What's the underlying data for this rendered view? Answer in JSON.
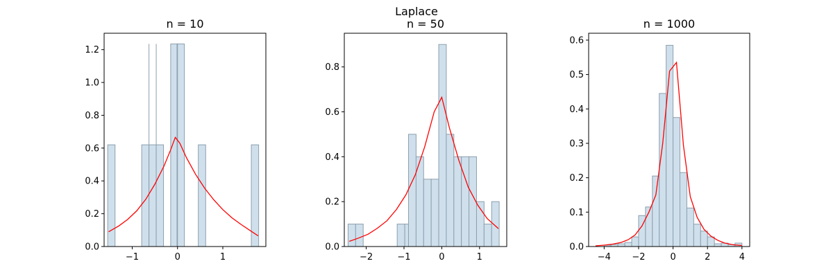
{
  "suptitle": "Laplace",
  "colors": {
    "bar_fill": "#cfe0ec",
    "bar_stroke": "#8d9fad",
    "curve": "#ff0000",
    "axis": "#000000"
  },
  "chart_data": [
    {
      "type": "bar",
      "title": "n = 10",
      "xlabel": "",
      "ylabel": "",
      "xlim": [
        -1.62,
        1.95
      ],
      "ylim": [
        0,
        1.3
      ],
      "xticks": [
        -1,
        0,
        1
      ],
      "xtick_labels": [
        "−1",
        "0",
        "1"
      ],
      "yticks": [
        0.0,
        0.2,
        0.4,
        0.6,
        0.8,
        1.0,
        1.2
      ],
      "ytick_labels": [
        "0.0",
        "0.2",
        "0.4",
        "0.6",
        "0.8",
        "1.0",
        "1.2"
      ],
      "bar_width": 0.162,
      "bins": [
        {
          "x": -1.46,
          "height": 0.62
        },
        {
          "x": -0.71,
          "height": 0.62
        },
        {
          "x": -0.55,
          "height": 0.62
        },
        {
          "x": -0.39,
          "height": 0.62
        },
        {
          "x": -0.07,
          "height": 1.235
        },
        {
          "x": 0.07,
          "height": 1.235
        },
        {
          "x": 0.54,
          "height": 0.62
        },
        {
          "x": 1.71,
          "height": 0.62
        }
      ],
      "dividers": [
        -0.63,
        -0.47,
        0.0
      ],
      "curve": {
        "x": [
          -1.52,
          -1.3,
          -1.1,
          -0.9,
          -0.7,
          -0.5,
          -0.3,
          -0.15,
          -0.05,
          0.05,
          0.2,
          0.4,
          0.6,
          0.8,
          1.0,
          1.2,
          1.4,
          1.6,
          1.78
        ],
        "y": [
          0.09,
          0.125,
          0.165,
          0.218,
          0.288,
          0.38,
          0.49,
          0.59,
          0.665,
          0.63,
          0.54,
          0.44,
          0.355,
          0.285,
          0.225,
          0.175,
          0.135,
          0.098,
          0.065
        ]
      }
    },
    {
      "type": "bar",
      "title": "n = 50",
      "xlabel": "",
      "ylabel": "",
      "xlim": [
        -2.58,
        1.72
      ],
      "ylim": [
        0,
        0.95
      ],
      "xticks": [
        -2,
        -1,
        0,
        1
      ],
      "xtick_labels": [
        "−2",
        "−1",
        "0",
        "1"
      ],
      "yticks": [
        0.0,
        0.2,
        0.4,
        0.6,
        0.8
      ],
      "ytick_labels": [
        "0.0",
        "0.2",
        "0.4",
        "0.6",
        "0.8"
      ],
      "bar_width": 0.2,
      "bins": [
        {
          "x": -2.38,
          "height": 0.1
        },
        {
          "x": -2.18,
          "height": 0.1
        },
        {
          "x": -1.08,
          "height": 0.1
        },
        {
          "x": -0.88,
          "height": 0.1
        },
        {
          "x": -0.78,
          "height": 0.5
        },
        {
          "x": -0.58,
          "height": 0.4
        },
        {
          "x": -0.38,
          "height": 0.3
        },
        {
          "x": -0.18,
          "height": 0.3
        },
        {
          "x": 0.02,
          "height": 0.9
        },
        {
          "x": 0.22,
          "height": 0.5
        },
        {
          "x": 0.42,
          "height": 0.4
        },
        {
          "x": 0.62,
          "height": 0.4
        },
        {
          "x": 0.82,
          "height": 0.4
        },
        {
          "x": 1.02,
          "height": 0.2
        },
        {
          "x": 1.22,
          "height": 0.1
        },
        {
          "x": 1.42,
          "height": 0.2
        }
      ],
      "dividers": [],
      "curve": {
        "x": [
          -2.45,
          -2.2,
          -1.95,
          -1.7,
          -1.45,
          -1.2,
          -0.95,
          -0.7,
          -0.45,
          -0.2,
          0.0,
          0.2,
          0.45,
          0.7,
          0.95,
          1.2,
          1.5
        ],
        "y": [
          0.023,
          0.038,
          0.055,
          0.082,
          0.115,
          0.165,
          0.23,
          0.32,
          0.445,
          0.6,
          0.665,
          0.53,
          0.385,
          0.265,
          0.185,
          0.125,
          0.08
        ]
      }
    },
    {
      "type": "bar",
      "title": "n = 1000",
      "xlabel": "",
      "ylabel": "",
      "xlim": [
        -4.9,
        4.45
      ],
      "ylim": [
        0,
        0.62
      ],
      "xticks": [
        -4,
        -2,
        0,
        2,
        4
      ],
      "xtick_labels": [
        "−4",
        "−2",
        "0",
        "2",
        "4"
      ],
      "yticks": [
        0.0,
        0.1,
        0.2,
        0.3,
        0.4,
        0.5,
        0.6
      ],
      "ytick_labels": [
        "0.0",
        "0.1",
        "0.2",
        "0.3",
        "0.4",
        "0.5",
        "0.6"
      ],
      "bar_width": 0.4,
      "bins": [
        {
          "x": -3.8,
          "height": 0.004
        },
        {
          "x": -3.4,
          "height": 0.006
        },
        {
          "x": -3.0,
          "height": 0.008
        },
        {
          "x": -2.6,
          "height": 0.012
        },
        {
          "x": -2.2,
          "height": 0.028
        },
        {
          "x": -1.8,
          "height": 0.09
        },
        {
          "x": -1.4,
          "height": 0.115
        },
        {
          "x": -1.0,
          "height": 0.205
        },
        {
          "x": -0.6,
          "height": 0.445
        },
        {
          "x": -0.2,
          "height": 0.585
        },
        {
          "x": 0.2,
          "height": 0.375
        },
        {
          "x": 0.6,
          "height": 0.215
        },
        {
          "x": 1.0,
          "height": 0.112
        },
        {
          "x": 1.4,
          "height": 0.065
        },
        {
          "x": 1.8,
          "height": 0.045
        },
        {
          "x": 2.2,
          "height": 0.028
        },
        {
          "x": 2.6,
          "height": 0.008
        },
        {
          "x": 3.0,
          "height": 0.01
        },
        {
          "x": 3.4,
          "height": 0.006
        },
        {
          "x": 3.8,
          "height": 0.01
        }
      ],
      "dividers": [],
      "curve": {
        "x": [
          -4.5,
          -4.0,
          -3.5,
          -3.0,
          -2.6,
          -2.2,
          -1.8,
          -1.4,
          -1.0,
          -0.6,
          -0.2,
          0.2,
          0.6,
          1.0,
          1.4,
          1.8,
          2.2,
          2.6,
          3.0,
          3.5,
          4.0
        ],
        "y": [
          0.002,
          0.004,
          0.007,
          0.012,
          0.02,
          0.034,
          0.06,
          0.1,
          0.15,
          0.3,
          0.51,
          0.535,
          0.295,
          0.145,
          0.085,
          0.05,
          0.03,
          0.018,
          0.01,
          0.005,
          0.003
        ]
      }
    }
  ]
}
